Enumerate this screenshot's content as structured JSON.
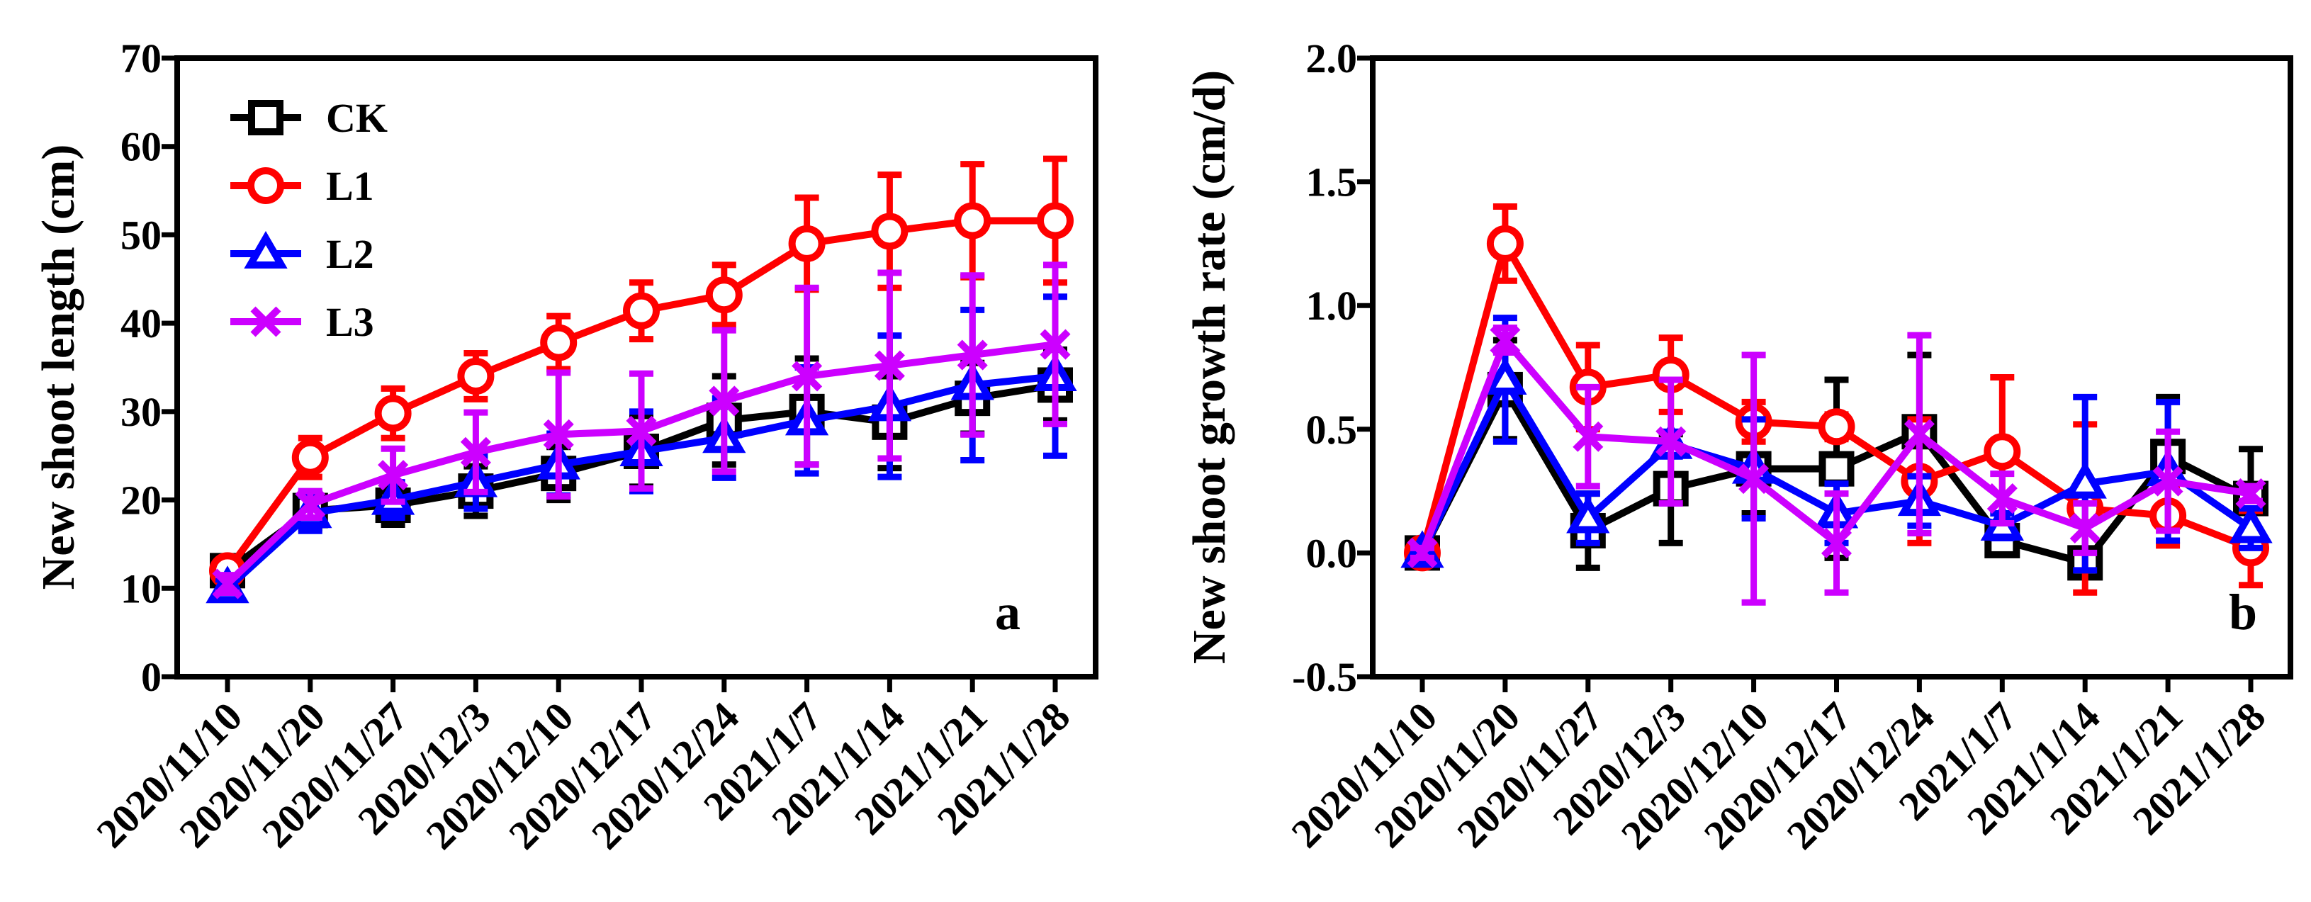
{
  "colors": {
    "CK": "#000000",
    "L1": "#ff0000",
    "L2": "#0000ff",
    "L3": "#cc00ff"
  },
  "chart_data": [
    {
      "type": "line",
      "panel_label": "a",
      "title": "",
      "xlabel": "",
      "ylabel": "New shoot length (cm)",
      "ylim": [
        0,
        70
      ],
      "yticks": [
        0,
        10,
        20,
        30,
        40,
        50,
        60,
        70
      ],
      "categories": [
        "2020/11/10",
        "2020/11/20",
        "2020/11/27",
        "2020/12/3",
        "2020/12/10",
        "2020/12/17",
        "2020/12/24",
        "2021/1/7",
        "2021/1/14",
        "2021/1/21",
        "2021/1/28"
      ],
      "legend": {
        "position": "top-left",
        "entries": [
          "CK",
          "L1",
          "L2",
          "L3"
        ]
      },
      "series": [
        {
          "name": "CK",
          "marker": "square",
          "values": [
            12,
            18.8,
            19.4,
            21,
            23,
            25.5,
            29,
            30,
            28.8,
            31.5,
            33
          ],
          "errors": [
            1.2,
            2,
            2.2,
            2.8,
            3,
            4,
            5,
            6,
            5.2,
            4,
            4
          ]
        },
        {
          "name": "L1",
          "marker": "circle",
          "values": [
            12,
            24.8,
            29.8,
            34,
            37.8,
            41.4,
            43.2,
            49,
            50.4,
            51.6,
            51.6
          ],
          "errors": [
            1,
            2.2,
            2.8,
            2.6,
            3,
            3.2,
            3.4,
            5.2,
            6.4,
            6.4,
            7
          ]
        },
        {
          "name": "L2",
          "marker": "triangle",
          "values": [
            10,
            18.5,
            20,
            22,
            24,
            25.5,
            27,
            29,
            30.6,
            33,
            34
          ],
          "errors": [
            1,
            2,
            2,
            3,
            3.5,
            4.5,
            4.5,
            6,
            8,
            8.5,
            9
          ]
        },
        {
          "name": "L3",
          "marker": "x",
          "values": [
            10.5,
            19.5,
            22.8,
            25.4,
            27.4,
            27.8,
            31.2,
            34,
            35.2,
            36.4,
            37.6
          ],
          "errors": [
            1,
            1.5,
            3,
            4.5,
            7,
            6.5,
            8,
            10,
            10.5,
            9,
            9
          ]
        }
      ]
    },
    {
      "type": "line",
      "panel_label": "b",
      "title": "",
      "xlabel": "",
      "ylabel": "New shoot growth rate (cm/d)",
      "ylim": [
        -0.5,
        2.0
      ],
      "yticks": [
        "-0.5",
        "0.0",
        "0.5",
        "1.0",
        "1.5",
        "2.0"
      ],
      "categories": [
        "2020/11/10",
        "2020/11/20",
        "2020/11/27",
        "2020/12/3",
        "2020/12/10",
        "2020/12/17",
        "2020/12/24",
        "2021/1/7",
        "2021/1/14",
        "2021/1/21",
        "2021/1/28"
      ],
      "series": [
        {
          "name": "CK",
          "marker": "square",
          "values": [
            0,
            0.66,
            0.09,
            0.26,
            0.34,
            0.34,
            0.49,
            0.05,
            -0.04,
            0.39,
            0.22
          ],
          "errors": [
            0.02,
            0.2,
            0.15,
            0.22,
            0.18,
            0.36,
            0.31,
            0.03,
            0.03,
            0.24,
            0.2
          ]
        },
        {
          "name": "L1",
          "marker": "circle",
          "values": [
            0,
            1.25,
            0.67,
            0.72,
            0.53,
            0.51,
            0.29,
            0.41,
            0.18,
            0.15,
            0.02
          ],
          "errors": [
            0.02,
            0.15,
            0.17,
            0.15,
            0.08,
            0.05,
            0.25,
            0.3,
            0.34,
            0.12,
            0.15
          ]
        },
        {
          "name": "L2",
          "marker": "triangle",
          "values": [
            0,
            0.7,
            0.14,
            0.44,
            0.34,
            0.16,
            0.21,
            0.11,
            0.28,
            0.33,
            0.1
          ],
          "errors": [
            0.02,
            0.25,
            0.1,
            0.05,
            0.2,
            0.12,
            0.1,
            0.05,
            0.35,
            0.28,
            0.08
          ]
        },
        {
          "name": "L3",
          "marker": "x",
          "values": [
            0,
            0.86,
            0.47,
            0.45,
            0.3,
            0.04,
            0.48,
            0.22,
            0.1,
            0.29,
            0.24
          ],
          "errors": [
            0.02,
            0.05,
            0.2,
            0.25,
            0.5,
            0.2,
            0.4,
            0.1,
            0.1,
            0.2,
            0.03
          ]
        }
      ]
    }
  ]
}
